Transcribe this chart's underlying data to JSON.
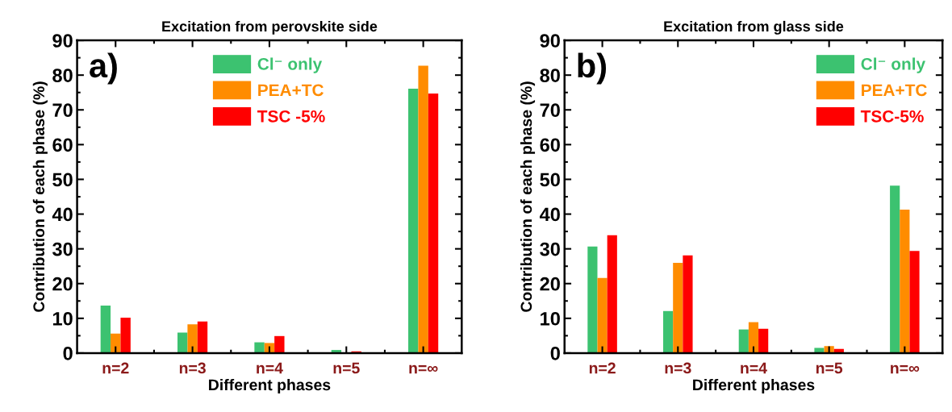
{
  "chart_data": [
    {
      "type": "bar",
      "title": "Excitation from perovskite side",
      "xlabel": "Different phases",
      "ylabel": "Contribution of each phase (%)",
      "annotations": [
        "a)"
      ],
      "categories": [
        "n=2",
        "n=3",
        "n=4",
        "n=5",
        "n=∞"
      ],
      "series": [
        {
          "name": "Cl⁻ only",
          "color": "#3cc270",
          "values": [
            13.7,
            5.9,
            3.1,
            0.9,
            76.1
          ]
        },
        {
          "name": "PEA+TC",
          "color": "#ff8c00",
          "values": [
            5.6,
            8.3,
            2.9,
            0,
            82.7
          ]
        },
        {
          "name": "TSC -5%",
          "color": "#ff0000",
          "values": [
            10.2,
            9.1,
            4.9,
            0.5,
            74.7
          ]
        }
      ],
      "ylim": [
        0,
        90
      ],
      "yticks": [
        0,
        10,
        20,
        30,
        40,
        50,
        60,
        70,
        80,
        90
      ],
      "legend": "top",
      "grid": false
    },
    {
      "type": "bar",
      "title": "Excitation from glass side",
      "xlabel": "Different phases",
      "ylabel": "Contribution of each phase (%)",
      "annotations": [
        "b)"
      ],
      "categories": [
        "n=2",
        "n=3",
        "n=4",
        "n=5",
        "n=∞"
      ],
      "series": [
        {
          "name": "Cl⁻ only",
          "color": "#3cc270",
          "values": [
            30.7,
            12.1,
            6.8,
            1.5,
            48.2
          ]
        },
        {
          "name": "PEA+TC",
          "color": "#ff8c00",
          "values": [
            21.6,
            26.0,
            8.9,
            2.0,
            41.3
          ]
        },
        {
          "name": "TSC-5%",
          "color": "#ff0000",
          "values": [
            33.9,
            28.1,
            7.0,
            1.2,
            29.4
          ]
        }
      ],
      "ylim": [
        0,
        90
      ],
      "yticks": [
        0,
        10,
        20,
        30,
        40,
        50,
        60,
        70,
        80,
        90
      ],
      "legend": "top right",
      "grid": false
    }
  ]
}
